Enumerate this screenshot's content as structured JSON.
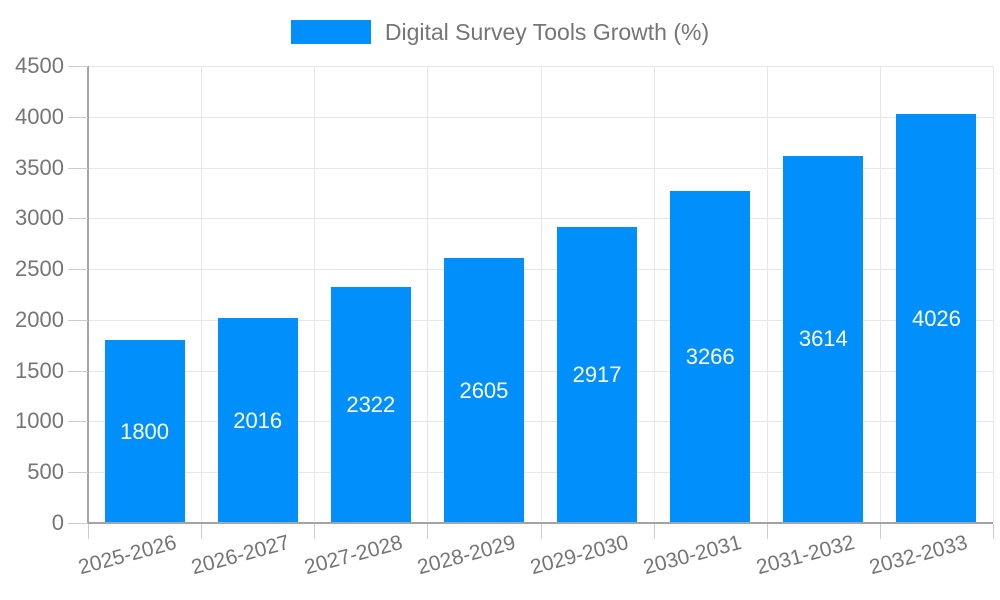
{
  "chart_data": {
    "type": "bar",
    "title": "Digital Survey Tools Growth (%)",
    "categories": [
      "2025-2026",
      "2026-2027",
      "2027-2028",
      "2028-2029",
      "2029-2030",
      "2030-2031",
      "2031-2032",
      "2032-2033"
    ],
    "values": [
      1800,
      2016,
      2322,
      2605,
      2917,
      3266,
      3614,
      4026
    ],
    "bar_labels": [
      "1800",
      "2016",
      "2322",
      "2605",
      "2917",
      "3266",
      "3614",
      "4026"
    ],
    "xlabel": "",
    "ylabel": "",
    "ylim": [
      0,
      4500
    ],
    "ytick_step": 500,
    "yticks": [
      0,
      500,
      1000,
      1500,
      2000,
      2500,
      3000,
      3500,
      4000,
      4500
    ],
    "grid": true,
    "legend_position": "top",
    "x_label_rotation_deg": -15,
    "colors": {
      "bar": "#008FFB",
      "bar_value_text": "#FFFFFF",
      "axis_text": "#757575",
      "gridline": "#E7E7E7",
      "axis_line": "#A4A4A4",
      "tick": "#CCCCCC",
      "background": "#FFFFFF"
    }
  }
}
